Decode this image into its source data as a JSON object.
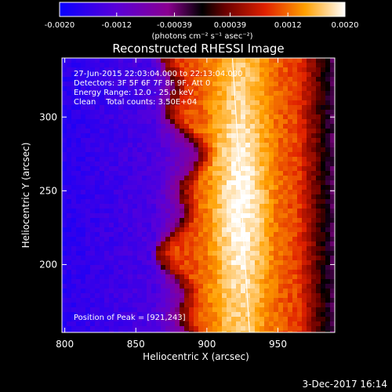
{
  "colorbar": {
    "tick_labels": [
      "-0.0020",
      "-0.0012",
      "-0.00039",
      "0.00039",
      "0.0012",
      "0.0020"
    ],
    "tick_values": [
      -0.002,
      -0.0012,
      -0.00039,
      0.00039,
      0.0012,
      0.002
    ],
    "range": [
      -0.002,
      0.002
    ],
    "units_label": "(photons cm⁻² s⁻¹ asec⁻²)"
  },
  "chart_data": {
    "type": "heatmap",
    "title": "Reconstructed RHESSI Image",
    "xlabel": "Heliocentric X (arcsec)",
    "ylabel": "Heliocentric Y (arcsec)",
    "xlim": [
      798,
      990
    ],
    "ylim": [
      154,
      340
    ],
    "x_ticks": [
      800,
      850,
      900,
      950
    ],
    "y_ticks": [
      200,
      250,
      300
    ],
    "info_lines": [
      "27-Jun-2015 22:03:04.000 to 22:13:04.000",
      "Detectors: 3F 5F 6F 7F 8F 9F, Att 0",
      "Energy Range: 12.0 - 25.0 keV",
      "Clean    Total counts: 3.50E+04"
    ],
    "peak_label": "Position of Peak = [921,243]",
    "peak": [
      921,
      243
    ],
    "limb": [
      [
        918,
        340
      ],
      [
        930,
        154
      ]
    ]
  },
  "footer": {
    "date": "3-Dec-2017 16:14"
  }
}
